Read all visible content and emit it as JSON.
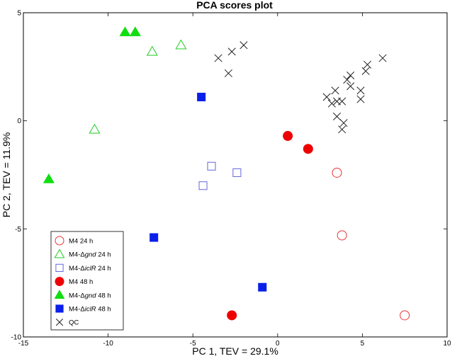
{
  "chart_data": {
    "type": "scatter",
    "title": "PCA scores plot",
    "xlabel": "PC 1, TEV = 29.1%",
    "ylabel": "PC 2, TEV = 11.9%",
    "xlim": [
      -15,
      10
    ],
    "ylim": [
      -10,
      5
    ],
    "xticks": [
      "-15",
      "-10",
      "-5",
      "0",
      "5",
      "10"
    ],
    "yticks": [
      "-10",
      "-5",
      "0",
      "5"
    ],
    "grid": false,
    "legend_position": "bottom-left",
    "series": [
      {
        "name_prefix": "M4",
        "name_italic": "",
        "name_suffix": " 24 h",
        "marker": "circle-open",
        "color": "#ee3333",
        "points": [
          [
            3.5,
            -2.4
          ],
          [
            3.8,
            -5.3
          ],
          [
            7.5,
            -9.0
          ]
        ]
      },
      {
        "name_prefix": "M4-Δ",
        "name_italic": "gnd",
        "name_suffix": " 24 h",
        "marker": "triangle-open",
        "color": "#22cc22",
        "points": [
          [
            -7.4,
            3.2
          ],
          [
            -5.7,
            3.5
          ],
          [
            -10.8,
            -0.4
          ]
        ]
      },
      {
        "name_prefix": "M4-Δ",
        "name_italic": "iclR",
        "name_suffix": " 24 h",
        "marker": "square-open",
        "color": "#6666dd",
        "points": [
          [
            -3.9,
            -2.1
          ],
          [
            -2.4,
            -2.4
          ],
          [
            -4.4,
            -3.0
          ]
        ]
      },
      {
        "name_prefix": "M4",
        "name_italic": "",
        "name_suffix": " 48 h",
        "marker": "circle-filled",
        "color": "#ee0000",
        "points": [
          [
            0.6,
            -0.7
          ],
          [
            1.8,
            -1.3
          ],
          [
            -2.7,
            -9.0
          ]
        ]
      },
      {
        "name_prefix": "M4-Δ",
        "name_italic": "gnd",
        "name_suffix": " 48 h",
        "marker": "triangle-filled",
        "color": "#11dd11",
        "points": [
          [
            -9.0,
            4.1
          ],
          [
            -8.4,
            4.1
          ],
          [
            -13.5,
            -2.7
          ]
        ]
      },
      {
        "name_prefix": "M4-Δ",
        "name_italic": "iclR",
        "name_suffix": " 48 h",
        "marker": "square-filled",
        "color": "#0a1fe8",
        "points": [
          [
            -4.5,
            1.1
          ],
          [
            -7.3,
            -5.4
          ],
          [
            -0.9,
            -7.7
          ]
        ]
      },
      {
        "name_prefix": "QC",
        "name_italic": "",
        "name_suffix": "",
        "marker": "x",
        "color": "#222222",
        "points": [
          [
            -3.5,
            2.9
          ],
          [
            -2.7,
            3.2
          ],
          [
            -2.0,
            3.5
          ],
          [
            -2.9,
            2.2
          ],
          [
            2.9,
            1.1
          ],
          [
            3.2,
            0.8
          ],
          [
            3.4,
            1.4
          ],
          [
            3.5,
            0.9
          ],
          [
            3.8,
            0.9
          ],
          [
            4.1,
            1.9
          ],
          [
            4.3,
            2.1
          ],
          [
            4.3,
            1.6
          ],
          [
            3.5,
            0.2
          ],
          [
            3.9,
            -0.1
          ],
          [
            3.8,
            -0.4
          ],
          [
            4.9,
            1.4
          ],
          [
            4.9,
            1.0
          ],
          [
            5.2,
            2.3
          ],
          [
            5.3,
            2.6
          ],
          [
            6.2,
            2.9
          ]
        ]
      }
    ]
  }
}
